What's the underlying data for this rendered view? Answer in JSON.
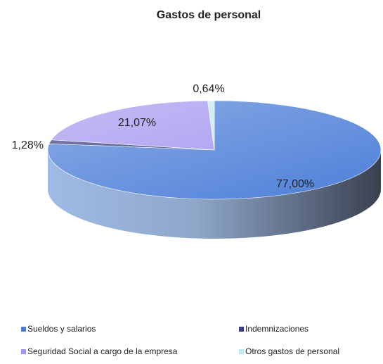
{
  "chart_data": {
    "type": "pie",
    "title": "Gastos de personal",
    "categories": [
      "Sueldos y salarios",
      "Indemnizaciones",
      "Seguridad Social a cargo de la empresa",
      "Otros gastos de personal"
    ],
    "values": [
      77.0,
      1.28,
      21.07,
      0.64
    ],
    "value_labels": [
      "77,00%",
      "1,28%",
      "21,07%",
      "0,64%"
    ],
    "colors": [
      "#4d7fd8",
      "#3b3f7e",
      "#a496f0",
      "#c2e9ee"
    ]
  }
}
